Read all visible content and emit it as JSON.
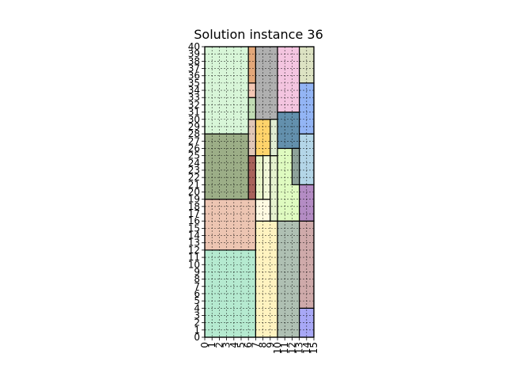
{
  "chart_data": {
    "type": "rectangle-packing",
    "title": "Solution instance 36",
    "xlim": [
      0,
      15
    ],
    "ylim": [
      0,
      40
    ],
    "grid": true,
    "x_ticks": [
      "0",
      "1",
      "2",
      "3",
      "4",
      "5",
      "6",
      "7",
      "8",
      "9",
      "10",
      "11",
      "12",
      "13",
      "14",
      "15"
    ],
    "y_ticks": [
      "0",
      "1",
      "2",
      "3",
      "4",
      "5",
      "6",
      "7",
      "8",
      "9",
      "10",
      "11",
      "12",
      "13",
      "14",
      "15",
      "16",
      "17",
      "18",
      "19",
      "20",
      "21",
      "22",
      "23",
      "24",
      "25",
      "26",
      "27",
      "28",
      "29",
      "30",
      "31",
      "32",
      "33",
      "34",
      "35",
      "36",
      "37",
      "38",
      "39",
      "40"
    ],
    "rectangles": [
      {
        "x": 0,
        "y": 0,
        "w": 7,
        "h": 12,
        "color": "#b5ead0"
      },
      {
        "x": 0,
        "y": 12,
        "w": 7,
        "h": 7,
        "color": "#edc5b2"
      },
      {
        "x": 0,
        "y": 19,
        "w": 6,
        "h": 9,
        "color": "#9cae87"
      },
      {
        "x": 0,
        "y": 28,
        "w": 6,
        "h": 12,
        "color": "#d8f6d8"
      },
      {
        "x": 6,
        "y": 19,
        "w": 1,
        "h": 6,
        "color": "#a8625b"
      },
      {
        "x": 6,
        "y": 25,
        "w": 1,
        "h": 5,
        "color": "#e2c7b6"
      },
      {
        "x": 6,
        "y": 30,
        "w": 1,
        "h": 3,
        "color": "#c1dcb4"
      },
      {
        "x": 6,
        "y": 33,
        "w": 1,
        "h": 2,
        "color": "#f4c7b4"
      },
      {
        "x": 6,
        "y": 35,
        "w": 1,
        "h": 5,
        "color": "#e3a779"
      },
      {
        "x": 7,
        "y": 0,
        "w": 3,
        "h": 16,
        "color": "#fff3c0"
      },
      {
        "x": 7,
        "y": 16,
        "w": 2,
        "h": 3,
        "color": "#fffae2"
      },
      {
        "x": 7,
        "y": 19,
        "w": 1,
        "h": 6,
        "color": "#e8f5c8"
      },
      {
        "x": 7,
        "y": 25,
        "w": 2,
        "h": 5,
        "color": "#ffd36b"
      },
      {
        "x": 7,
        "y": 30,
        "w": 3,
        "h": 10,
        "color": "#b0b0b0"
      },
      {
        "x": 8,
        "y": 19,
        "w": 1,
        "h": 6,
        "color": "#f2f9d8"
      },
      {
        "x": 9,
        "y": 16,
        "w": 1,
        "h": 9,
        "color": "#e6f3cf"
      },
      {
        "x": 9,
        "y": 25,
        "w": 1,
        "h": 5,
        "color": "#e0edd3"
      },
      {
        "x": 10,
        "y": 0,
        "w": 3,
        "h": 16,
        "color": "#afc0b3"
      },
      {
        "x": 10,
        "y": 16,
        "w": 3,
        "h": 10,
        "color": "#dffbc0"
      },
      {
        "x": 10,
        "y": 26,
        "w": 3,
        "h": 5,
        "color": "#6390ad"
      },
      {
        "x": 10,
        "y": 31,
        "w": 3,
        "h": 9,
        "color": "#f4c5e0"
      },
      {
        "x": 13,
        "y": 0,
        "w": 2,
        "h": 4,
        "color": "#a8a8f6"
      },
      {
        "x": 13,
        "y": 4,
        "w": 2,
        "h": 12,
        "color": "#cfaaaa"
      },
      {
        "x": 13,
        "y": 16,
        "w": 2,
        "h": 5,
        "color": "#b48cc4"
      },
      {
        "x": 13,
        "y": 21,
        "w": 2,
        "h": 7,
        "color": "#b4d6e8"
      },
      {
        "x": 13,
        "y": 28,
        "w": 2,
        "h": 7,
        "color": "#93b5f5"
      },
      {
        "x": 13,
        "y": 35,
        "w": 2,
        "h": 5,
        "color": "#dde3c3"
      },
      {
        "x": 12,
        "y": 21,
        "w": 1,
        "h": 5,
        "color": "#8ea29a"
      }
    ]
  }
}
